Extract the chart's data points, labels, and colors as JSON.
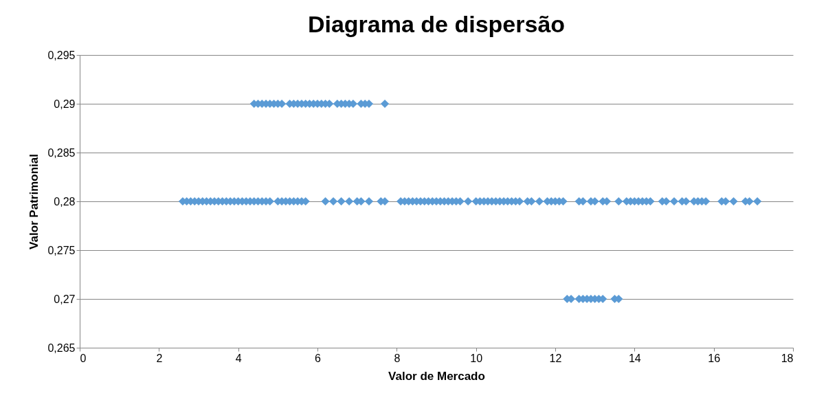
{
  "chart_data": {
    "type": "scatter",
    "title": "Diagrama de dispersão",
    "xlabel": "Valor de Mercado",
    "ylabel": "Valor Patrimonial",
    "series": [
      {
        "color": "#5b9bd5",
        "x": [
          4.4,
          4.5,
          4.6,
          4.7,
          4.8,
          4.9,
          5.0,
          5.1,
          5.3,
          5.4,
          5.5,
          5.6,
          5.7,
          5.8,
          5.9,
          6.0,
          6.1,
          6.2,
          6.3,
          6.5,
          6.6,
          6.7,
          6.8,
          6.9,
          7.1,
          7.2,
          7.3,
          7.7
        ],
        "values": [
          0.29,
          0.29,
          0.29,
          0.29,
          0.29,
          0.29,
          0.29,
          0.29,
          0.29,
          0.29,
          0.29,
          0.29,
          0.29,
          0.29,
          0.29,
          0.29,
          0.29,
          0.29,
          0.29,
          0.29,
          0.29,
          0.29,
          0.29,
          0.29,
          0.29,
          0.29,
          0.29,
          0.29
        ]
      },
      {
        "color": "#5b9bd5",
        "x": [
          2.6,
          2.7,
          2.8,
          2.9,
          3.0,
          3.1,
          3.2,
          3.3,
          3.4,
          3.5,
          3.6,
          3.7,
          3.8,
          3.9,
          4.0,
          4.1,
          4.2,
          4.3,
          4.4,
          4.5,
          4.6,
          4.7,
          4.8,
          5.0,
          5.1,
          5.2,
          5.3,
          5.4,
          5.5,
          5.6,
          5.7,
          6.2,
          6.4,
          6.6,
          6.8,
          7.0,
          7.1,
          7.3,
          7.6,
          7.7,
          8.1,
          8.2,
          8.3,
          8.4,
          8.5,
          8.6,
          8.7,
          8.8,
          8.9,
          9.0,
          9.1,
          9.2,
          9.3,
          9.4,
          9.5,
          9.6,
          9.8,
          10.0,
          10.1,
          10.2,
          10.3,
          10.4,
          10.5,
          10.6,
          10.7,
          10.8,
          10.9,
          11.0,
          11.1,
          11.3,
          11.4,
          11.6,
          11.8,
          11.9,
          12.0,
          12.1,
          12.2,
          12.6,
          12.7,
          12.9,
          13.0,
          13.2,
          13.3,
          13.6,
          13.8,
          13.9,
          14.0,
          14.1,
          14.2,
          14.3,
          14.4,
          14.7,
          14.8,
          15.0,
          15.2,
          15.3,
          15.5,
          15.6,
          15.7,
          15.8,
          16.2,
          16.3,
          16.5,
          16.8,
          16.9,
          17.1
        ],
        "values": [
          0.28,
          0.28,
          0.28,
          0.28,
          0.28,
          0.28,
          0.28,
          0.28,
          0.28,
          0.28,
          0.28,
          0.28,
          0.28,
          0.28,
          0.28,
          0.28,
          0.28,
          0.28,
          0.28,
          0.28,
          0.28,
          0.28,
          0.28,
          0.28,
          0.28,
          0.28,
          0.28,
          0.28,
          0.28,
          0.28,
          0.28,
          0.28,
          0.28,
          0.28,
          0.28,
          0.28,
          0.28,
          0.28,
          0.28,
          0.28,
          0.28,
          0.28,
          0.28,
          0.28,
          0.28,
          0.28,
          0.28,
          0.28,
          0.28,
          0.28,
          0.28,
          0.28,
          0.28,
          0.28,
          0.28,
          0.28,
          0.28,
          0.28,
          0.28,
          0.28,
          0.28,
          0.28,
          0.28,
          0.28,
          0.28,
          0.28,
          0.28,
          0.28,
          0.28,
          0.28,
          0.28,
          0.28,
          0.28,
          0.28,
          0.28,
          0.28,
          0.28,
          0.28,
          0.28,
          0.28,
          0.28,
          0.28,
          0.28,
          0.28,
          0.28,
          0.28,
          0.28,
          0.28,
          0.28,
          0.28,
          0.28,
          0.28,
          0.28,
          0.28,
          0.28,
          0.28,
          0.28,
          0.28,
          0.28,
          0.28,
          0.28,
          0.28,
          0.28,
          0.28,
          0.28,
          0.28
        ]
      },
      {
        "color": "#5b9bd5",
        "x": [
          12.3,
          12.4,
          12.6,
          12.7,
          12.8,
          12.9,
          13.0,
          13.1,
          13.2,
          13.5,
          13.6
        ],
        "values": [
          0.27,
          0.27,
          0.27,
          0.27,
          0.27,
          0.27,
          0.27,
          0.27,
          0.27,
          0.27,
          0.27
        ]
      }
    ],
    "xlim": [
      0,
      18
    ],
    "xticks": [
      0,
      2,
      4,
      6,
      8,
      10,
      12,
      14,
      16,
      18
    ],
    "ylim": [
      0.265,
      0.295
    ],
    "yticks": [
      {
        "value": 0.265,
        "label": "0,265"
      },
      {
        "value": 0.27,
        "label": "0,27"
      },
      {
        "value": 0.275,
        "label": "0,275"
      },
      {
        "value": 0.28,
        "label": "0,28"
      },
      {
        "value": 0.285,
        "label": "0,285"
      },
      {
        "value": 0.29,
        "label": "0,29"
      },
      {
        "value": 0.295,
        "label": "0,295"
      }
    ],
    "grid": "y",
    "marker": "diamond"
  }
}
